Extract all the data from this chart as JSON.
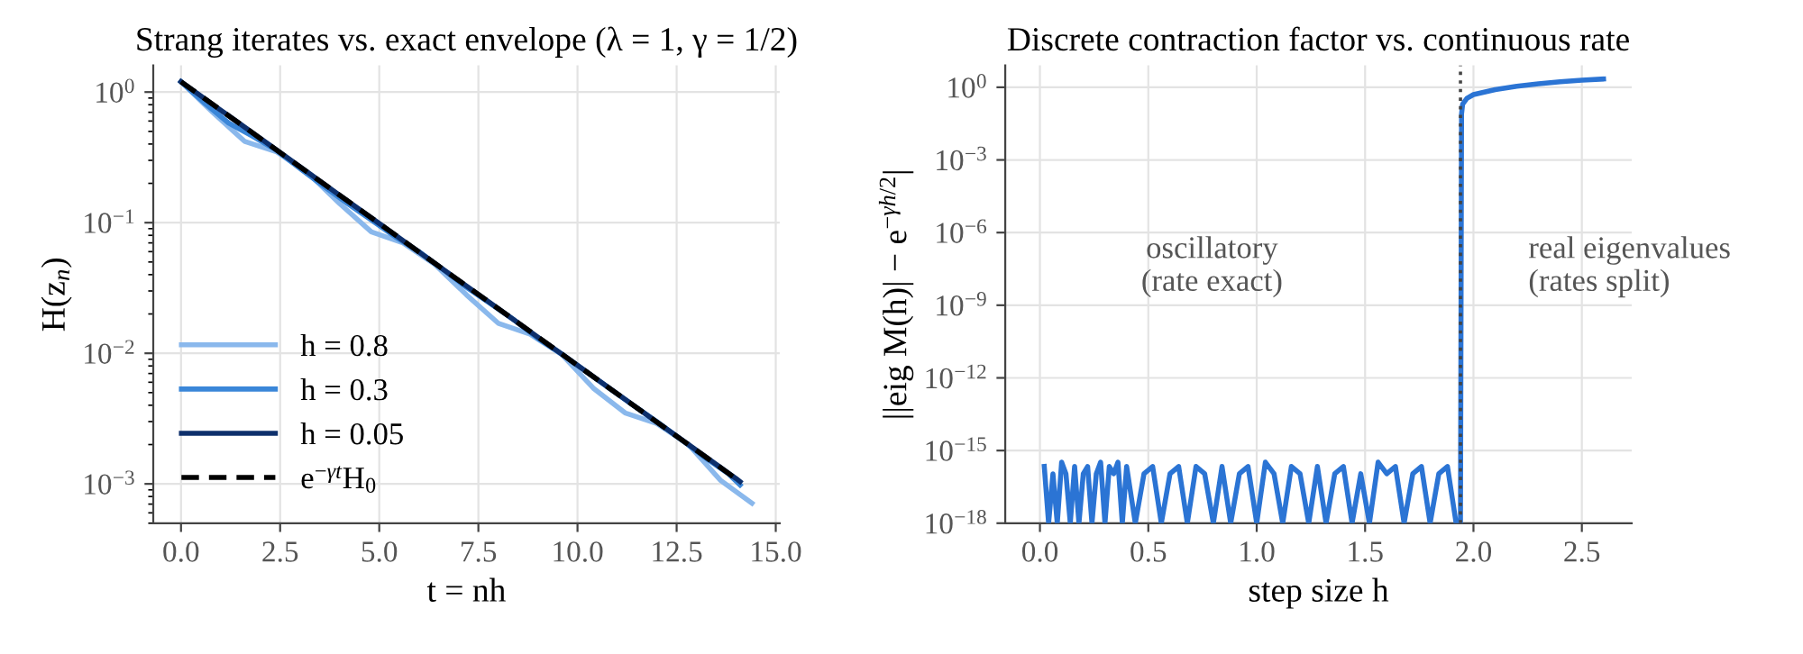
{
  "chart_data": [
    {
      "type": "line",
      "title": "Strang iterates vs. exact envelope (λ = 1, γ = 1/2)",
      "xlabel": "t = nh",
      "ylabel": "H(z$_{n}$)",
      "log": "y",
      "grid": true,
      "legend": "bottom left",
      "xlim": [
        -0.7,
        15.1
      ],
      "xticks": [
        {
          "value": 0,
          "label": "0.0"
        },
        2.5,
        {
          "value": 5,
          "label": "5.0"
        },
        7.5,
        {
          "value": 10,
          "label": "10.0"
        },
        12.5,
        {
          "value": 15,
          "label": "15.0"
        }
      ],
      "ylim": [
        0.0005,
        1.6
      ],
      "yticks": [
        {
          "value": 0.001,
          "label": "10$^{−3}$"
        },
        {
          "value": 0.01,
          "label": "10$^{−2}$"
        },
        {
          "value": 0.1,
          "label": "10$^{−1}$"
        },
        {
          "value": 1,
          "label": "10$^{0}$"
        }
      ],
      "series": [
        {
          "name": "h = 0.8",
          "color": "#8ab8ec",
          "x": [
            0,
            0.8,
            1.6,
            2.4,
            3.2,
            4.0,
            4.8,
            5.6,
            6.4,
            7.2,
            8.0,
            8.8,
            9.6,
            10.4,
            11.2,
            12.0,
            12.8,
            13.6,
            14.4
          ],
          "values": [
            1.2,
            0.7,
            0.42,
            0.35,
            0.24,
            0.14,
            0.085,
            0.07,
            0.048,
            0.028,
            0.017,
            0.014,
            0.0098,
            0.0054,
            0.0035,
            0.0029,
            0.002,
            0.00107,
            0.00071
          ]
        },
        {
          "name": "h = 0.3",
          "color": "#3a86d8",
          "x": [
            0,
            0.6,
            1.2,
            1.8,
            2.4,
            3.0,
            3.6,
            4.2,
            4.8,
            5.4,
            6.0,
            6.6,
            7.2,
            7.8,
            8.4,
            9.0,
            9.6,
            10.2,
            10.8,
            11.4,
            12.0,
            12.6,
            13.2,
            13.8,
            14.1
          ],
          "values": [
            1.2,
            0.82,
            0.58,
            0.46,
            0.36,
            0.26,
            0.19,
            0.14,
            0.105,
            0.078,
            0.06,
            0.044,
            0.032,
            0.024,
            0.018,
            0.013,
            0.0099,
            0.0073,
            0.0054,
            0.004,
            0.003,
            0.0022,
            0.0016,
            0.0012,
            0.00098
          ]
        },
        {
          "name": "h = 0.05",
          "color": "#0d2f6b",
          "x": [
            0,
            1,
            2,
            3,
            4,
            5,
            6,
            7,
            8,
            9,
            10,
            11,
            12,
            13,
            14,
            14.1
          ],
          "values": [
            1.2,
            0.728,
            0.442,
            0.268,
            0.162,
            0.0985,
            0.0597,
            0.0362,
            0.022,
            0.0133,
            0.00809,
            0.00491,
            0.00298,
            0.00181,
            0.0011,
            0.00104
          ]
        },
        {
          "name": "e$^{−γt}$H$_{0}$",
          "color": "#000000",
          "line_style": "dashed",
          "x": [
            0,
            14.1
          ],
          "values": [
            1.2,
            0.00104
          ]
        }
      ]
    },
    {
      "type": "line",
      "title": "Discrete contraction factor vs. continuous rate",
      "xlabel": "step size h",
      "ylabel": "||eig M(h)| − e$^{−γh/2}$|",
      "log": "y",
      "grid": true,
      "xlim": [
        -0.16,
        2.73
      ],
      "xticks": [
        {
          "value": 0,
          "label": "0.0"
        },
        0.5,
        {
          "value": 1,
          "label": "1.0"
        },
        1.5,
        {
          "value": 2,
          "label": "2.0"
        },
        2.5
      ],
      "ylim": [
        1e-18,
        8
      ],
      "yticks": [
        {
          "value": 1e-18,
          "label": "10$^{−18}$"
        },
        {
          "value": 1e-15,
          "label": "10$^{−15}$"
        },
        {
          "value": 1e-12,
          "label": "10$^{−12}$"
        },
        {
          "value": 1e-09,
          "label": "10$^{−9}$"
        },
        {
          "value": 1e-06,
          "label": "10$^{−6}$"
        },
        {
          "value": 0.001,
          "label": "10$^{−3}$"
        },
        {
          "value": 1,
          "label": "10$^{0}$"
        }
      ],
      "annotations": [
        "oscillatory\n(rate exact)",
        "real eigenvalues\n(rates split)"
      ],
      "ref_lines": [
        {
          "axis": "x",
          "value": 1.94,
          "color": "#444444",
          "line_style": "dotted"
        }
      ],
      "series": [
        {
          "color": "#2b74d4",
          "x": [
            0.02,
            0.04,
            0.06,
            0.08,
            0.1,
            0.12,
            0.14,
            0.16,
            0.18,
            0.2,
            0.22,
            0.24,
            0.26,
            0.28,
            0.3,
            0.32,
            0.34,
            0.36,
            0.38,
            0.4,
            0.44,
            0.48,
            0.52,
            0.56,
            0.6,
            0.64,
            0.68,
            0.72,
            0.76,
            0.8,
            0.84,
            0.88,
            0.92,
            0.96,
            1.0,
            1.04,
            1.08,
            1.12,
            1.16,
            1.2,
            1.24,
            1.28,
            1.32,
            1.36,
            1.4,
            1.44,
            1.48,
            1.52,
            1.56,
            1.6,
            1.64,
            1.68,
            1.72,
            1.76,
            1.8,
            1.84,
            1.88,
            1.92,
            1.94,
            1.945,
            1.95,
            1.97,
            2.0,
            2.1,
            2.2,
            2.3,
            2.4,
            2.5,
            2.6
          ],
          "values": [
            2.2e-16,
            1e-18,
            1.1e-16,
            1e-18,
            3.3e-16,
            1.1e-16,
            1e-18,
            2.2e-16,
            1e-18,
            1.1e-16,
            2.2e-16,
            1e-18,
            1.1e-16,
            3.3e-16,
            1e-18,
            2.2e-16,
            1.1e-16,
            3.3e-16,
            1e-18,
            2.2e-16,
            1e-18,
            1.1e-16,
            2.2e-16,
            1e-18,
            1.1e-16,
            2.2e-16,
            1e-18,
            2.2e-16,
            1.1e-16,
            1e-18,
            2.2e-16,
            1e-18,
            1.1e-16,
            2.2e-16,
            1e-18,
            3.3e-16,
            1.1e-16,
            1e-18,
            2.2e-16,
            1.1e-16,
            1e-18,
            2.2e-16,
            1e-18,
            1.1e-16,
            2.2e-16,
            1e-18,
            1.1e-16,
            1e-18,
            3.3e-16,
            1.1e-16,
            2.2e-16,
            1e-18,
            1.1e-16,
            2.2e-16,
            1e-18,
            1.1e-16,
            2.2e-16,
            1e-18,
            1e-18,
            0.08,
            0.2,
            0.35,
            0.5,
            0.8,
            1.1,
            1.4,
            1.7,
            1.95,
            2.2
          ]
        }
      ]
    }
  ]
}
